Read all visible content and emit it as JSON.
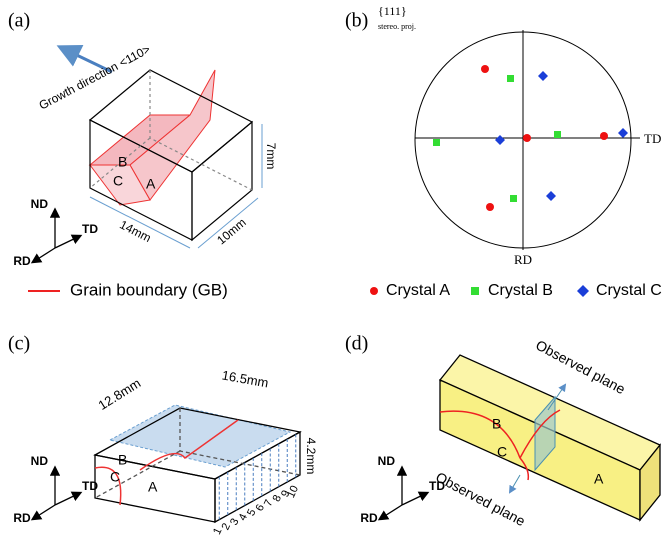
{
  "panel_a": {
    "label": "(a)",
    "growth": "Growth direction <110>",
    "dims": [
      "7mm",
      "14mm",
      "10mm"
    ],
    "grains": [
      "B",
      "C",
      "A"
    ],
    "axes": [
      "ND",
      "RD",
      "TD"
    ],
    "legend": "Grain boundary (GB)"
  },
  "panel_b": {
    "label": "(b)",
    "header": "{111}",
    "subheader": "stereo. proj.",
    "axes": [
      "TD",
      "RD"
    ],
    "legend": [
      "Crystal A",
      "Crystal B",
      "Crystal C"
    ]
  },
  "panel_c": {
    "label": "(c)",
    "dims": [
      "12.8mm",
      "16.5mm",
      "4.2mm"
    ],
    "grains": [
      "B",
      "C",
      "A"
    ],
    "slices": [
      "1",
      "2",
      "3",
      "4",
      "5",
      "6",
      "7",
      "8",
      "9",
      "10"
    ],
    "axes": [
      "ND",
      "RD",
      "TD"
    ]
  },
  "panel_d": {
    "label": "(d)",
    "planes": [
      "Observed plane",
      "Observed plane"
    ],
    "grains": [
      "B",
      "C",
      "A"
    ],
    "axes": [
      "ND",
      "RD",
      "TD"
    ]
  }
}
